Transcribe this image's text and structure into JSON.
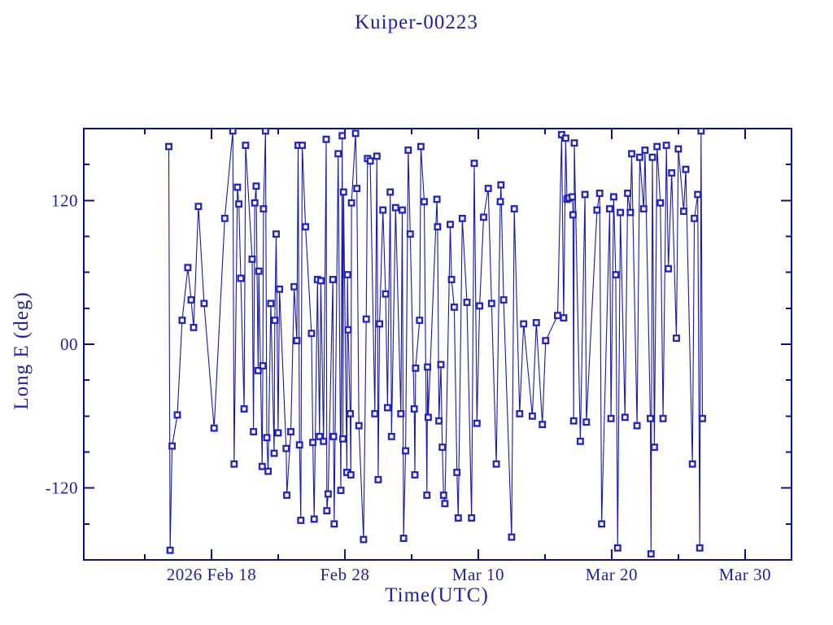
{
  "window": {
    "background": "#ffffff"
  },
  "chart_data": {
    "type": "line",
    "title": "Kuiper-00223",
    "xlabel": "Time(UTC)",
    "ylabel": "Long E (deg)",
    "x_unit": "days relative to 2026 Feb 18 00:00 UTC",
    "y_unit": "degrees",
    "xlim": [
      -9.57,
      43.48
    ],
    "ylim": [
      -180,
      180
    ],
    "grid": false,
    "legend": null,
    "marker": "open-square",
    "line_style": "solid",
    "x_major_ticks": [
      {
        "t": 0,
        "label": "2026 Feb 18"
      },
      {
        "t": 10,
        "label": "Feb 28"
      },
      {
        "t": 20,
        "label": "Mar 10"
      },
      {
        "t": 30,
        "label": "Mar 20"
      },
      {
        "t": 40,
        "label": "Mar 30"
      }
    ],
    "x_minor_ticks": [
      -5,
      5,
      15,
      25,
      35
    ],
    "y_major_ticks": [
      {
        "v": 120,
        "label": "120"
      },
      {
        "v": 0,
        "label": "00"
      },
      {
        "v": -120,
        "label": "-120"
      }
    ],
    "y_minor_ticks": [
      -150,
      -90,
      -60,
      -30,
      30,
      60,
      90,
      150
    ],
    "colors": {
      "ink": "#1a18a8",
      "frame": "#0d0d96",
      "text": "#2020aa",
      "marker_edge": "#2323c3",
      "marker_fill": "#ffffff",
      "background": "#ffffff"
    },
    "points": [
      [
        -3.2,
        165
      ],
      [
        -3.1,
        -172
      ],
      [
        -2.95,
        -85
      ],
      [
        -2.56,
        -59
      ],
      [
        -2.2,
        20
      ],
      [
        -1.77,
        64
      ],
      [
        -1.52,
        37
      ],
      [
        -1.34,
        14
      ],
      [
        -0.98,
        115
      ],
      [
        -0.55,
        34
      ],
      [
        0.2,
        -70
      ],
      [
        1.0,
        105
      ],
      [
        1.6,
        178
      ],
      [
        1.7,
        -100
      ],
      [
        1.95,
        131
      ],
      [
        2.05,
        117
      ],
      [
        2.2,
        55
      ],
      [
        2.45,
        -54
      ],
      [
        2.56,
        166
      ],
      [
        3.05,
        71
      ],
      [
        3.15,
        -73
      ],
      [
        3.25,
        118
      ],
      [
        3.35,
        132
      ],
      [
        3.5,
        -22
      ],
      [
        3.55,
        61
      ],
      [
        3.8,
        -102
      ],
      [
        3.85,
        -18
      ],
      [
        3.9,
        113
      ],
      [
        4.05,
        178
      ],
      [
        4.15,
        -78
      ],
      [
        4.25,
        -106
      ],
      [
        4.45,
        34
      ],
      [
        4.7,
        -91
      ],
      [
        4.75,
        20
      ],
      [
        4.85,
        92
      ],
      [
        5.0,
        -74
      ],
      [
        5.1,
        46
      ],
      [
        5.6,
        -87
      ],
      [
        5.65,
        -126
      ],
      [
        5.95,
        -73
      ],
      [
        6.2,
        48
      ],
      [
        6.4,
        3
      ],
      [
        6.5,
        166
      ],
      [
        6.6,
        -84
      ],
      [
        6.7,
        -147
      ],
      [
        6.8,
        166
      ],
      [
        7.05,
        98
      ],
      [
        7.5,
        9
      ],
      [
        7.6,
        -82
      ],
      [
        7.7,
        -146
      ],
      [
        7.95,
        54
      ],
      [
        8.1,
        -77
      ],
      [
        8.2,
        53
      ],
      [
        8.4,
        -81
      ],
      [
        8.6,
        171
      ],
      [
        8.65,
        -139
      ],
      [
        8.75,
        -125
      ],
      [
        9.1,
        54
      ],
      [
        9.15,
        -77
      ],
      [
        9.2,
        -150
      ],
      [
        9.5,
        159
      ],
      [
        9.7,
        -122
      ],
      [
        9.8,
        174
      ],
      [
        9.85,
        -79
      ],
      [
        9.9,
        127
      ],
      [
        10.15,
        -107
      ],
      [
        10.2,
        58
      ],
      [
        10.25,
        12
      ],
      [
        10.4,
        -58
      ],
      [
        10.45,
        -109
      ],
      [
        10.5,
        118
      ],
      [
        10.8,
        176
      ],
      [
        10.9,
        130
      ],
      [
        11.05,
        -68
      ],
      [
        11.4,
        -163
      ],
      [
        11.6,
        21
      ],
      [
        11.7,
        155
      ],
      [
        11.9,
        153
      ],
      [
        12.25,
        -58
      ],
      [
        12.4,
        157
      ],
      [
        12.5,
        -113
      ],
      [
        12.6,
        17
      ],
      [
        12.85,
        112
      ],
      [
        13.05,
        42
      ],
      [
        13.2,
        -53
      ],
      [
        13.4,
        127
      ],
      [
        13.5,
        -77
      ],
      [
        13.8,
        114
      ],
      [
        14.2,
        -58
      ],
      [
        14.3,
        112
      ],
      [
        14.4,
        -162
      ],
      [
        14.55,
        -89
      ],
      [
        14.75,
        162
      ],
      [
        14.9,
        92
      ],
      [
        15.2,
        -54
      ],
      [
        15.25,
        -109
      ],
      [
        15.3,
        -20
      ],
      [
        15.6,
        20
      ],
      [
        15.7,
        165
      ],
      [
        15.95,
        119
      ],
      [
        16.15,
        -126
      ],
      [
        16.2,
        -19
      ],
      [
        16.25,
        -61
      ],
      [
        16.9,
        121
      ],
      [
        16.95,
        98
      ],
      [
        17.05,
        -64
      ],
      [
        17.2,
        -17
      ],
      [
        17.3,
        -86
      ],
      [
        17.4,
        -126
      ],
      [
        17.5,
        -133
      ],
      [
        17.9,
        100
      ],
      [
        18.0,
        54
      ],
      [
        18.2,
        31
      ],
      [
        18.4,
        -107
      ],
      [
        18.5,
        -145
      ],
      [
        18.8,
        105
      ],
      [
        19.15,
        35
      ],
      [
        19.5,
        -145
      ],
      [
        19.7,
        151
      ],
      [
        19.9,
        -66
      ],
      [
        20.1,
        32
      ],
      [
        20.4,
        106
      ],
      [
        20.75,
        130
      ],
      [
        21.0,
        34
      ],
      [
        21.35,
        -100
      ],
      [
        21.65,
        119
      ],
      [
        21.7,
        133
      ],
      [
        21.9,
        37
      ],
      [
        22.5,
        -161
      ],
      [
        22.7,
        113
      ],
      [
        23.1,
        -58
      ],
      [
        23.4,
        17
      ],
      [
        24.05,
        -60
      ],
      [
        24.35,
        18
      ],
      [
        24.8,
        -67
      ],
      [
        25.05,
        3
      ],
      [
        25.95,
        24
      ],
      [
        26.25,
        175
      ],
      [
        26.4,
        22
      ],
      [
        26.55,
        172
      ],
      [
        26.65,
        121
      ],
      [
        26.8,
        122
      ],
      [
        27.05,
        123
      ],
      [
        27.1,
        108
      ],
      [
        27.15,
        -64
      ],
      [
        27.2,
        168
      ],
      [
        27.65,
        -81
      ],
      [
        28.0,
        125
      ],
      [
        28.1,
        -65
      ],
      [
        28.9,
        112
      ],
      [
        29.1,
        126
      ],
      [
        29.25,
        -150
      ],
      [
        29.85,
        113
      ],
      [
        29.95,
        -62
      ],
      [
        30.15,
        123
      ],
      [
        30.3,
        58
      ],
      [
        30.45,
        -170
      ],
      [
        30.65,
        110
      ],
      [
        31.0,
        -61
      ],
      [
        31.2,
        126
      ],
      [
        31.4,
        110
      ],
      [
        31.5,
        159
      ],
      [
        31.9,
        -68
      ],
      [
        32.1,
        156
      ],
      [
        32.4,
        113
      ],
      [
        32.5,
        162
      ],
      [
        32.9,
        -62
      ],
      [
        32.95,
        -175
      ],
      [
        33.05,
        156
      ],
      [
        33.2,
        -86
      ],
      [
        33.4,
        165
      ],
      [
        33.65,
        118
      ],
      [
        33.85,
        -62
      ],
      [
        34.1,
        166
      ],
      [
        34.25,
        63
      ],
      [
        34.5,
        143
      ],
      [
        34.85,
        5
      ],
      [
        35.0,
        163
      ],
      [
        35.4,
        111
      ],
      [
        35.55,
        146
      ],
      [
        36.05,
        -100
      ],
      [
        36.2,
        105
      ],
      [
        36.45,
        125
      ],
      [
        36.6,
        -170
      ],
      [
        36.7,
        178
      ],
      [
        36.8,
        -62
      ]
    ]
  }
}
